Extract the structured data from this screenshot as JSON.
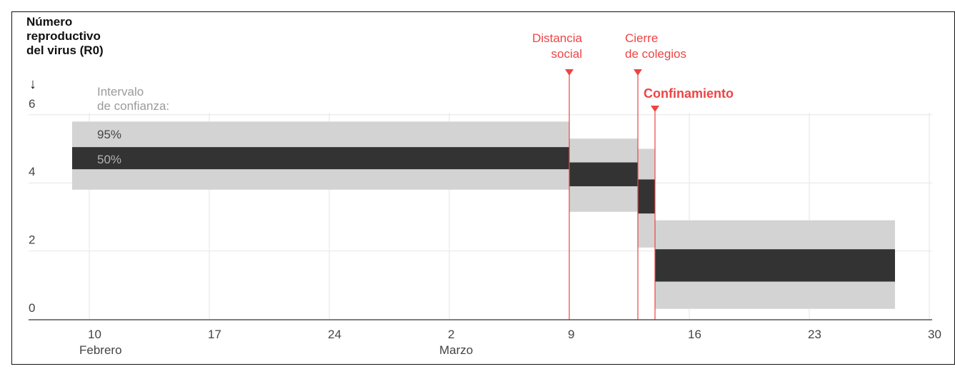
{
  "chart_data": {
    "type": "bar",
    "title": "Número reproductivo del virus (R0)",
    "title_lines": [
      "Número",
      "reproductivo",
      "del virus (R0)"
    ],
    "title_arrow": "↓",
    "xlabel": "",
    "ylabel": "",
    "ylim": [
      0,
      6
    ],
    "y_ticks": [
      "0",
      "2",
      "4",
      "6"
    ],
    "x_ticks": [
      {
        "date": "2020-02-10",
        "label": "10",
        "sublabel": "Febrero"
      },
      {
        "date": "2020-02-17",
        "label": "17",
        "sublabel": ""
      },
      {
        "date": "2020-02-24",
        "label": "24",
        "sublabel": ""
      },
      {
        "date": "2020-03-02",
        "label": "2",
        "sublabel": "Marzo"
      },
      {
        "date": "2020-03-09",
        "label": "9",
        "sublabel": ""
      },
      {
        "date": "2020-03-16",
        "label": "16",
        "sublabel": ""
      },
      {
        "date": "2020-03-23",
        "label": "23",
        "sublabel": ""
      },
      {
        "date": "2020-03-30",
        "label": "30",
        "sublabel": ""
      }
    ],
    "xlim": [
      "2020-02-09",
      "2020-03-31"
    ],
    "grid": true,
    "legend": {
      "title_lines": [
        "Intervalo",
        "de confianza:"
      ],
      "items": [
        "95%",
        "50%"
      ]
    },
    "series": [
      {
        "name": "95%",
        "color": "#d3d3d3",
        "periods": [
          {
            "start": "2020-02-09",
            "end": "2020-03-09",
            "low": 3.8,
            "high": 5.8
          },
          {
            "start": "2020-03-09",
            "end": "2020-03-13",
            "low": 3.15,
            "high": 5.3
          },
          {
            "start": "2020-03-13",
            "end": "2020-03-14",
            "low": 2.1,
            "high": 5.0
          },
          {
            "start": "2020-03-14",
            "end": "2020-03-28",
            "low": 0.3,
            "high": 2.9
          }
        ]
      },
      {
        "name": "50%",
        "color": "#333333",
        "periods": [
          {
            "start": "2020-02-09",
            "end": "2020-03-09",
            "low": 4.4,
            "high": 5.05
          },
          {
            "start": "2020-03-09",
            "end": "2020-03-13",
            "low": 3.9,
            "high": 4.6
          },
          {
            "start": "2020-03-13",
            "end": "2020-03-14",
            "low": 3.1,
            "high": 4.1
          },
          {
            "start": "2020-03-14",
            "end": "2020-03-28",
            "low": 1.1,
            "high": 2.05
          }
        ]
      }
    ],
    "annotations": [
      {
        "date": "2020-03-09",
        "lines": [
          "Distancia",
          "social"
        ],
        "anchor": "end",
        "bold": false
      },
      {
        "date": "2020-03-13",
        "lines": [
          "Cierre",
          "de colegios"
        ],
        "anchor": "start",
        "bold": false
      },
      {
        "date": "2020-03-14",
        "lines": [
          "Confinamiento"
        ],
        "anchor": "start",
        "bold": true
      }
    ],
    "colors": {
      "annotation": "#ee4444",
      "grid": "#e6e6e6",
      "axis": "#555555",
      "text": "#444444"
    }
  }
}
